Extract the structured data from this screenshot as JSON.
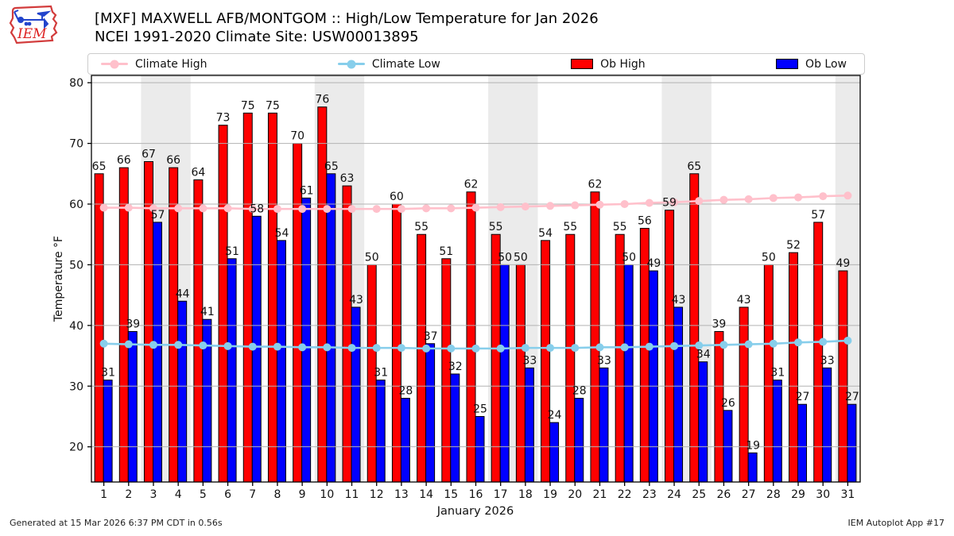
{
  "header": {
    "logo": "IEM",
    "title_line1": "[MXF] MAXWELL AFB/MONTGOM :: High/Low Temperature for Jan 2026",
    "title_line2": "NCEI 1991-2020 Climate Site: USW00013895"
  },
  "legend": {
    "items": [
      {
        "label": "Climate High",
        "type": "line",
        "color": "#ffc0cb"
      },
      {
        "label": "Climate Low",
        "type": "line",
        "color": "#87ceeb"
      },
      {
        "label": "Ob High",
        "type": "rect",
        "color": "#ff0000"
      },
      {
        "label": "Ob Low",
        "type": "rect",
        "color": "#0000ff"
      }
    ]
  },
  "footer": {
    "left": "Generated at 15 Mar 2026 6:37 PM CDT in 0.56s",
    "right": "IEM Autoplot App #17"
  },
  "chart_data": {
    "type": "bar",
    "title": "[MXF] MAXWELL AFB/MONTGOM :: High/Low Temperature for Jan 2026",
    "subtitle": "NCEI 1991-2020 Climate Site: USW00013895",
    "xlabel": "January 2026",
    "ylabel": "Temperature °F",
    "ylim": [
      14.2,
      81.2
    ],
    "yticks": [
      20,
      30,
      40,
      50,
      60,
      70,
      80
    ],
    "grid": true,
    "legend_position": "top",
    "x": [
      1,
      2,
      3,
      4,
      5,
      6,
      7,
      8,
      9,
      10,
      11,
      12,
      13,
      14,
      15,
      16,
      17,
      18,
      19,
      20,
      21,
      22,
      23,
      24,
      25,
      26,
      27,
      28,
      29,
      30,
      31
    ],
    "series": [
      {
        "name": "Ob High",
        "type": "bar",
        "color": "#ff0000",
        "values": [
          65,
          66,
          67,
          66,
          64,
          73,
          75,
          75,
          70,
          76,
          63,
          50,
          60,
          55,
          51,
          62,
          55,
          50,
          54,
          55,
          62,
          55,
          56,
          59,
          65,
          39,
          43,
          50,
          52,
          57,
          49
        ]
      },
      {
        "name": "Ob Low",
        "type": "bar",
        "color": "#0000ff",
        "values": [
          31,
          39,
          57,
          44,
          41,
          51,
          58,
          54,
          61,
          65,
          43,
          31,
          28,
          37,
          32,
          25,
          50,
          33,
          24,
          28,
          33,
          50,
          49,
          43,
          34,
          26,
          19,
          31,
          27,
          33,
          27
        ]
      },
      {
        "name": "Climate High",
        "type": "line",
        "color": "#ffc0cb",
        "values": [
          59.4,
          59.4,
          59.3,
          59.3,
          59.3,
          59.3,
          59.2,
          59.2,
          59.2,
          59.2,
          59.2,
          59.2,
          59.2,
          59.3,
          59.3,
          59.4,
          59.5,
          59.6,
          59.7,
          59.8,
          59.9,
          60.0,
          60.2,
          60.3,
          60.5,
          60.7,
          60.8,
          61.0,
          61.1,
          61.3,
          61.4
        ]
      },
      {
        "name": "Climate Low",
        "type": "line",
        "color": "#87ceeb",
        "values": [
          37.0,
          36.9,
          36.8,
          36.8,
          36.7,
          36.6,
          36.5,
          36.5,
          36.4,
          36.4,
          36.3,
          36.3,
          36.3,
          36.2,
          36.2,
          36.2,
          36.2,
          36.3,
          36.3,
          36.3,
          36.4,
          36.4,
          36.5,
          36.6,
          36.7,
          36.8,
          36.9,
          37.0,
          37.2,
          37.3,
          37.5
        ]
      }
    ],
    "weekend_shading_days": [
      [
        3,
        4
      ],
      [
        10,
        11
      ],
      [
        17,
        18
      ],
      [
        24,
        25
      ],
      [
        31,
        31
      ]
    ],
    "colors": {
      "weekend_band": "#ebebeb",
      "grid": "#b3b3b3",
      "bar_edge": "#000000",
      "frame": "#000000"
    }
  }
}
